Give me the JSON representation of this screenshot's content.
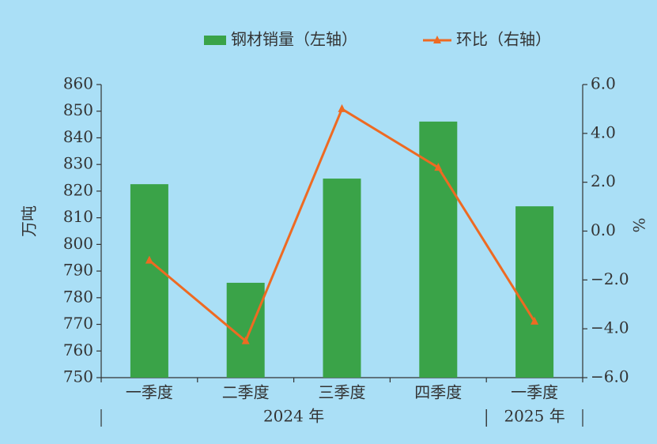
{
  "chart_data": {
    "type": "bar-line",
    "categories": [
      "一季度",
      "二季度",
      "三季度",
      "四季度",
      "一季度"
    ],
    "groups": [
      {
        "label": "2024 年",
        "count": 4
      },
      {
        "label": "2025 年",
        "count": 1
      }
    ],
    "series": [
      {
        "name": "钢材销量（左轴）",
        "type": "bar",
        "color": "#3aa348",
        "values": [
          822.6,
          785.6,
          824.7,
          846.1,
          814.3
        ]
      },
      {
        "name": "环比（右轴）",
        "type": "line",
        "axis": "y2",
        "color": "#ee6a22",
        "values": [
          -1.2,
          -4.5,
          5.0,
          2.6,
          -3.7
        ]
      }
    ],
    "ylabel": "万吨",
    "y2label": "%",
    "ylim": [
      750,
      860
    ],
    "yticks": [
      750,
      760,
      770,
      780,
      790,
      800,
      810,
      820,
      830,
      840,
      850,
      860
    ],
    "y2lim": [
      -6,
      6
    ],
    "y2ticks": [
      {
        "value": -6,
        "label": "−6.0"
      },
      {
        "value": -4,
        "label": "−4.0"
      },
      {
        "value": -2,
        "label": "−2.0"
      },
      {
        "value": 0,
        "label": "0.0"
      },
      {
        "value": 2,
        "label": "2.0"
      },
      {
        "value": 4,
        "label": "4.0"
      },
      {
        "value": 6,
        "label": "6.0"
      }
    ],
    "legend": "top"
  }
}
